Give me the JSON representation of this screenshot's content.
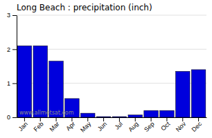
{
  "chart_data": {
    "type": "bar",
    "title": "Long Beach : precipitation (inch)",
    "categories": [
      "Jan",
      "Feb",
      "Mar",
      "Apr",
      "May",
      "Jun",
      "Jul",
      "Aug",
      "Sep",
      "Oct",
      "Nov",
      "Dec"
    ],
    "values": [
      2.1,
      2.1,
      1.65,
      0.55,
      0.12,
      0.02,
      0.02,
      0.07,
      0.2,
      0.2,
      1.35,
      1.4
    ],
    "color": "#0000dd",
    "ylim": [
      0,
      3
    ],
    "yticks": [
      0,
      1,
      2,
      3
    ],
    "grid": true,
    "annotations": [
      "www.allmetsat.com"
    ]
  }
}
